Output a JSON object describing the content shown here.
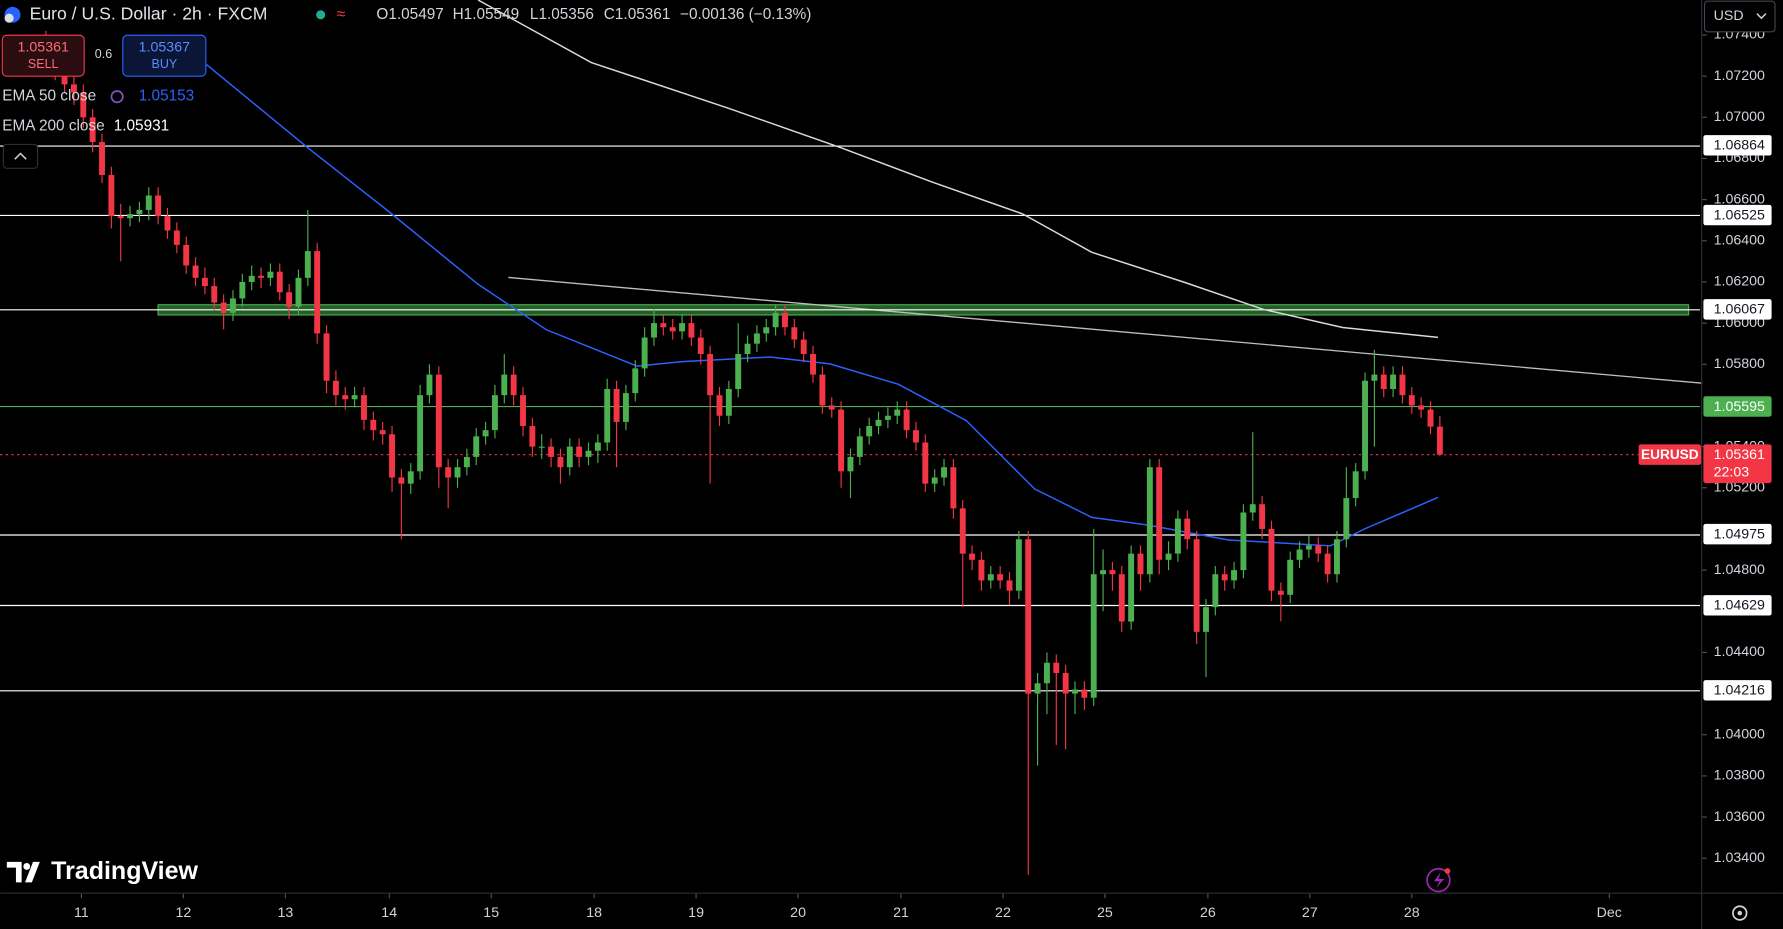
{
  "header": {
    "title": "Euro / U.S. Dollar · 2h · FXCM",
    "ohlc_labels": [
      "O",
      "H",
      "L",
      "C"
    ],
    "change": "−0.00136 (−0.13%)",
    "sell": "SELL",
    "spread": "0.6",
    "buy_price": "1.05367",
    "buy": "BUY",
    "currency": "USD",
    "brand": "TradingView"
  },
  "chart_data": {
    "type": "candlestick",
    "symbol": "EURUSD",
    "countdown": "22:03",
    "up_color": "#4caf50",
    "down_color": "#f23645",
    "grid": false,
    "xlim": [
      -4.9,
      176.8
    ],
    "ylim": [
      1.03233,
      1.0757
    ],
    "xticks": [
      {
        "value": 3.8,
        "label": "11"
      },
      {
        "value": 14.7,
        "label": "12"
      },
      {
        "value": 25.6,
        "label": "13"
      },
      {
        "value": 36.7,
        "label": "14"
      },
      {
        "value": 47.6,
        "label": "15"
      },
      {
        "value": 58.6,
        "label": "18"
      },
      {
        "value": 69.5,
        "label": "19"
      },
      {
        "value": 80.4,
        "label": "20"
      },
      {
        "value": 91.4,
        "label": "21"
      },
      {
        "value": 102.3,
        "label": "22"
      },
      {
        "value": 113.2,
        "label": "25"
      },
      {
        "value": 124.2,
        "label": "26"
      },
      {
        "value": 135.1,
        "label": "27"
      },
      {
        "value": 146.0,
        "label": "28"
      },
      {
        "value": 167.1,
        "label": "Dec"
      }
    ],
    "yticks": [
      {
        "value": 1.074,
        "label": "1.07400"
      },
      {
        "value": 1.072,
        "label": "1.07200"
      },
      {
        "value": 1.07,
        "label": "1.07000"
      },
      {
        "value": 1.068,
        "label": "1.06800"
      },
      {
        "value": 1.066,
        "label": "1.06600"
      },
      {
        "value": 1.064,
        "label": "1.06400"
      },
      {
        "value": 1.062,
        "label": "1.06200"
      },
      {
        "value": 1.06,
        "label": "1.06000"
      },
      {
        "value": 1.058,
        "label": "1.05800"
      },
      {
        "value": 1.054,
        "label": "1.05400"
      },
      {
        "value": 1.052,
        "label": "1.05200"
      },
      {
        "value": 1.048,
        "label": "1.04800"
      },
      {
        "value": 1.044,
        "label": "1.04400"
      },
      {
        "value": 1.04,
        "label": "1.04000"
      },
      {
        "value": 1.038,
        "label": "1.03800"
      },
      {
        "value": 1.036,
        "label": "1.03600"
      },
      {
        "value": 1.034,
        "label": "1.03400"
      }
    ],
    "levels": [
      {
        "value": 1.06864,
        "color": "#ffffff"
      },
      {
        "value": 1.06525,
        "color": "#ffffff"
      },
      {
        "value": 1.06067,
        "color": "#ffffff"
      },
      {
        "value": 1.05595,
        "color": "#4caf50"
      },
      {
        "value": 1.04975,
        "color": "#ffffff"
      },
      {
        "value": 1.04629,
        "color": "#ffffff"
      },
      {
        "value": 1.04216,
        "color": "#ffffff"
      }
    ],
    "series": [
      {
        "name": "EMA 50 close",
        "color": "#2962ff",
        "x": [
          16.9,
          28,
          36.5,
          46.2,
          53.5,
          63.2,
          68,
          77.4,
          83.8,
          91.1,
          98.4,
          105.7,
          111.8,
          117.9,
          126.4,
          137.3,
          141,
          148.8
        ],
        "values": [
          1.07266,
          1.06852,
          1.06548,
          1.06189,
          1.05968,
          1.05791,
          1.05813,
          1.05835,
          1.05802,
          1.05703,
          1.05526,
          1.05194,
          1.05056,
          1.05018,
          1.04946,
          1.04918,
          1.05001,
          1.05153
        ]
      },
      {
        "name": "EMA 200 close",
        "color": "#d9d9d9",
        "x": [
          46.2,
          58.3,
          72.9,
          85,
          94.7,
          104.4,
          111.8,
          121.6,
          130.1,
          138.6,
          148.8
        ],
        "values": [
          1.0757,
          1.07266,
          1.07045,
          1.06852,
          1.06686,
          1.06531,
          1.06344,
          1.062,
          1.06067,
          1.05979,
          1.05931
        ]
      }
    ],
    "candles": [
      [
        1.0735,
        1.0742,
        1.0722,
        1.0728
      ],
      [
        1.0728,
        1.0733,
        1.0718,
        1.0722
      ],
      [
        1.0722,
        1.0727,
        1.0712,
        1.0716
      ],
      [
        1.0716,
        1.0721,
        1.0706,
        1.0712
      ],
      [
        1.0712,
        1.0716,
        1.0695,
        1.07
      ],
      [
        1.07,
        1.0704,
        1.0683,
        1.0688
      ],
      [
        1.0688,
        1.0692,
        1.0668,
        1.0672
      ],
      [
        1.0672,
        1.0676,
        1.0646,
        1.0652
      ],
      [
        1.0652,
        1.0658,
        1.063,
        1.0651
      ],
      [
        1.0651,
        1.0657,
        1.0647,
        1.0653
      ],
      [
        1.0653,
        1.0659,
        1.0649,
        1.0655
      ],
      [
        1.0655,
        1.0666,
        1.065,
        1.0662
      ],
      [
        1.0662,
        1.0666,
        1.0648,
        1.0652
      ],
      [
        1.0652,
        1.0656,
        1.0641,
        1.0645
      ],
      [
        1.0645,
        1.0649,
        1.0634,
        1.0638
      ],
      [
        1.0638,
        1.0642,
        1.0624,
        1.0628
      ],
      [
        1.0628,
        1.0632,
        1.0618,
        1.0622
      ],
      [
        1.0622,
        1.0627,
        1.0614,
        1.0618
      ],
      [
        1.0618,
        1.0622,
        1.0606,
        1.061
      ],
      [
        1.061,
        1.0614,
        1.0597,
        1.0605
      ],
      [
        1.0605,
        1.0616,
        1.0601,
        1.0612
      ],
      [
        1.0612,
        1.0624,
        1.0608,
        1.062
      ],
      [
        1.062,
        1.0628,
        1.0616,
        1.0623
      ],
      [
        1.0623,
        1.0627,
        1.0617,
        1.0622
      ],
      [
        1.0622,
        1.0629,
        1.0618,
        1.0625
      ],
      [
        1.0625,
        1.0629,
        1.0611,
        1.0615
      ],
      [
        1.0615,
        1.0619,
        1.0602,
        1.0608
      ],
      [
        1.0608,
        1.0626,
        1.0604,
        1.0622
      ],
      [
        1.0622,
        1.0655,
        1.0618,
        1.0635
      ],
      [
        1.0635,
        1.0639,
        1.059,
        1.0595
      ],
      [
        1.0595,
        1.0599,
        1.0566,
        1.0572
      ],
      [
        1.0572,
        1.0577,
        1.056,
        1.0565
      ],
      [
        1.0565,
        1.0569,
        1.0558,
        1.0563
      ],
      [
        1.0563,
        1.0569,
        1.0559,
        1.0565
      ],
      [
        1.0565,
        1.0569,
        1.0548,
        1.0553
      ],
      [
        1.0553,
        1.0557,
        1.0543,
        1.0548
      ],
      [
        1.0548,
        1.0552,
        1.0541,
        1.0546
      ],
      [
        1.0546,
        1.055,
        1.0518,
        1.0525
      ],
      [
        1.0525,
        1.0529,
        1.0495,
        1.0522
      ],
      [
        1.0522,
        1.0532,
        1.0517,
        1.0528
      ],
      [
        1.0528,
        1.057,
        1.0524,
        1.0565
      ],
      [
        1.0565,
        1.058,
        1.0561,
        1.0575
      ],
      [
        1.0575,
        1.0579,
        1.052,
        1.053
      ],
      [
        1.053,
        1.0534,
        1.051,
        1.0525
      ],
      [
        1.0525,
        1.0534,
        1.052,
        1.053
      ],
      [
        1.053,
        1.0539,
        1.0526,
        1.0535
      ],
      [
        1.0535,
        1.0549,
        1.0531,
        1.0545
      ],
      [
        1.0545,
        1.0552,
        1.0541,
        1.0548
      ],
      [
        1.0548,
        1.057,
        1.0544,
        1.0565
      ],
      [
        1.0565,
        1.0585,
        1.0561,
        1.0575
      ],
      [
        1.0575,
        1.0579,
        1.056,
        1.0565
      ],
      [
        1.0565,
        1.0569,
        1.0545,
        1.055
      ],
      [
        1.055,
        1.0554,
        1.0535,
        1.054
      ],
      [
        1.054,
        1.0546,
        1.0534,
        1.054
      ],
      [
        1.054,
        1.0544,
        1.053,
        1.0535
      ],
      [
        1.0535,
        1.0539,
        1.0522,
        1.053
      ],
      [
        1.053,
        1.0544,
        1.0526,
        1.054
      ],
      [
        1.054,
        1.0544,
        1.053,
        1.0535
      ],
      [
        1.0535,
        1.0542,
        1.0531,
        1.0538
      ],
      [
        1.0538,
        1.0546,
        1.0532,
        1.0542
      ],
      [
        1.0542,
        1.0573,
        1.0538,
        1.0568
      ],
      [
        1.0568,
        1.0572,
        1.053,
        1.0552
      ],
      [
        1.0552,
        1.057,
        1.0548,
        1.0566
      ],
      [
        1.0566,
        1.0582,
        1.0562,
        1.0578
      ],
      [
        1.0578,
        1.0598,
        1.0574,
        1.0593
      ],
      [
        1.0593,
        1.0607,
        1.0589,
        1.06
      ],
      [
        1.06,
        1.0604,
        1.0594,
        1.0598
      ],
      [
        1.0598,
        1.0602,
        1.0592,
        1.0596
      ],
      [
        1.0596,
        1.0604,
        1.0592,
        1.06
      ],
      [
        1.06,
        1.0604,
        1.0589,
        1.0593
      ],
      [
        1.0593,
        1.0597,
        1.058,
        1.0585
      ],
      [
        1.0585,
        1.0589,
        1.0522,
        1.0565
      ],
      [
        1.0565,
        1.0569,
        1.055,
        1.0555
      ],
      [
        1.0555,
        1.0572,
        1.0551,
        1.0568
      ],
      [
        1.0568,
        1.06,
        1.0564,
        1.0585
      ],
      [
        1.0585,
        1.0594,
        1.0581,
        1.059
      ],
      [
        1.059,
        1.0599,
        1.0586,
        1.0595
      ],
      [
        1.0595,
        1.0602,
        1.0591,
        1.0598
      ],
      [
        1.0598,
        1.0609,
        1.0594,
        1.0605
      ],
      [
        1.0605,
        1.0609,
        1.0594,
        1.0598
      ],
      [
        1.0598,
        1.0602,
        1.0588,
        1.0592
      ],
      [
        1.0592,
        1.0596,
        1.0581,
        1.0585
      ],
      [
        1.0585,
        1.0589,
        1.0571,
        1.0575
      ],
      [
        1.0575,
        1.0579,
        1.0556,
        1.056
      ],
      [
        1.056,
        1.0564,
        1.0554,
        1.0558
      ],
      [
        1.0558,
        1.0562,
        1.052,
        1.0528
      ],
      [
        1.0528,
        1.0539,
        1.0515,
        1.0535
      ],
      [
        1.0535,
        1.0549,
        1.0531,
        1.0545
      ],
      [
        1.0545,
        1.0554,
        1.0541,
        1.055
      ],
      [
        1.055,
        1.0557,
        1.0546,
        1.0553
      ],
      [
        1.0553,
        1.0559,
        1.0549,
        1.0555
      ],
      [
        1.0555,
        1.0562,
        1.0551,
        1.0558
      ],
      [
        1.0558,
        1.0562,
        1.0544,
        1.0548
      ],
      [
        1.0548,
        1.0552,
        1.0538,
        1.0542
      ],
      [
        1.0542,
        1.0546,
        1.0518,
        1.0522
      ],
      [
        1.0522,
        1.0529,
        1.0518,
        1.0525
      ],
      [
        1.0525,
        1.0534,
        1.0521,
        1.053
      ],
      [
        1.053,
        1.0534,
        1.0505,
        1.051
      ],
      [
        1.051,
        1.0514,
        1.0462,
        1.0488
      ],
      [
        1.0488,
        1.0492,
        1.048,
        1.0485
      ],
      [
        1.0485,
        1.0489,
        1.047,
        1.0475
      ],
      [
        1.0475,
        1.0482,
        1.0471,
        1.0478
      ],
      [
        1.0478,
        1.0482,
        1.0471,
        1.0475
      ],
      [
        1.0475,
        1.0479,
        1.0463,
        1.047
      ],
      [
        1.047,
        1.0499,
        1.0466,
        1.0495
      ],
      [
        1.0495,
        1.0499,
        1.0332,
        1.042
      ],
      [
        1.042,
        1.043,
        1.0385,
        1.0425
      ],
      [
        1.0425,
        1.044,
        1.041,
        1.0435
      ],
      [
        1.0435,
        1.0439,
        1.0395,
        1.043
      ],
      [
        1.043,
        1.0434,
        1.0393,
        1.042
      ],
      [
        1.042,
        1.0426,
        1.041,
        1.0422
      ],
      [
        1.0422,
        1.0426,
        1.0412,
        1.0418
      ],
      [
        1.0418,
        1.05,
        1.0414,
        1.0478
      ],
      [
        1.0478,
        1.049,
        1.046,
        1.048
      ],
      [
        1.048,
        1.0484,
        1.047,
        1.0478
      ],
      [
        1.0478,
        1.0482,
        1.045,
        1.0455
      ],
      [
        1.0455,
        1.0492,
        1.0451,
        1.0488
      ],
      [
        1.0488,
        1.0492,
        1.047,
        1.0478
      ],
      [
        1.0478,
        1.0534,
        1.0474,
        1.053
      ],
      [
        1.053,
        1.0534,
        1.0478,
        1.0485
      ],
      [
        1.0485,
        1.0494,
        1.048,
        1.0488
      ],
      [
        1.0488,
        1.0509,
        1.0484,
        1.0505
      ],
      [
        1.0505,
        1.0509,
        1.049,
        1.0495
      ],
      [
        1.0495,
        1.0499,
        1.0444,
        1.045
      ],
      [
        1.045,
        1.0466,
        1.0428,
        1.0462
      ],
      [
        1.0462,
        1.0482,
        1.0458,
        1.0478
      ],
      [
        1.0478,
        1.0482,
        1.047,
        1.0475
      ],
      [
        1.0475,
        1.0484,
        1.0471,
        1.048
      ],
      [
        1.048,
        1.0512,
        1.0476,
        1.0508
      ],
      [
        1.0508,
        1.0547,
        1.0504,
        1.0512
      ],
      [
        1.0512,
        1.0516,
        1.0495,
        1.05
      ],
      [
        1.05,
        1.0504,
        1.0465,
        1.047
      ],
      [
        1.047,
        1.0474,
        1.0455,
        1.0468
      ],
      [
        1.0468,
        1.0489,
        1.0464,
        1.0485
      ],
      [
        1.0485,
        1.0494,
        1.0481,
        1.049
      ],
      [
        1.049,
        1.0497,
        1.0486,
        1.0492
      ],
      [
        1.0492,
        1.0496,
        1.0484,
        1.0488
      ],
      [
        1.0488,
        1.0492,
        1.0474,
        1.0478
      ],
      [
        1.0478,
        1.0499,
        1.0474,
        1.0495
      ],
      [
        1.0495,
        1.053,
        1.0491,
        1.0515
      ],
      [
        1.0515,
        1.0532,
        1.0511,
        1.0528
      ],
      [
        1.0528,
        1.0576,
        1.0524,
        1.0572
      ],
      [
        1.0572,
        1.0587,
        1.054,
        1.0575
      ],
      [
        1.0575,
        1.0579,
        1.0564,
        1.0568
      ],
      [
        1.0568,
        1.0579,
        1.0564,
        1.0575
      ],
      [
        1.0575,
        1.0579,
        1.0561,
        1.0565
      ],
      [
        1.0565,
        1.0569,
        1.0556,
        1.056
      ],
      [
        1.056,
        1.0564,
        1.0554,
        1.0558
      ],
      [
        1.0558,
        1.0562,
        1.0546,
        1.05497
      ],
      [
        1.05497,
        1.05549,
        1.05356,
        1.05361
      ]
    ]
  }
}
